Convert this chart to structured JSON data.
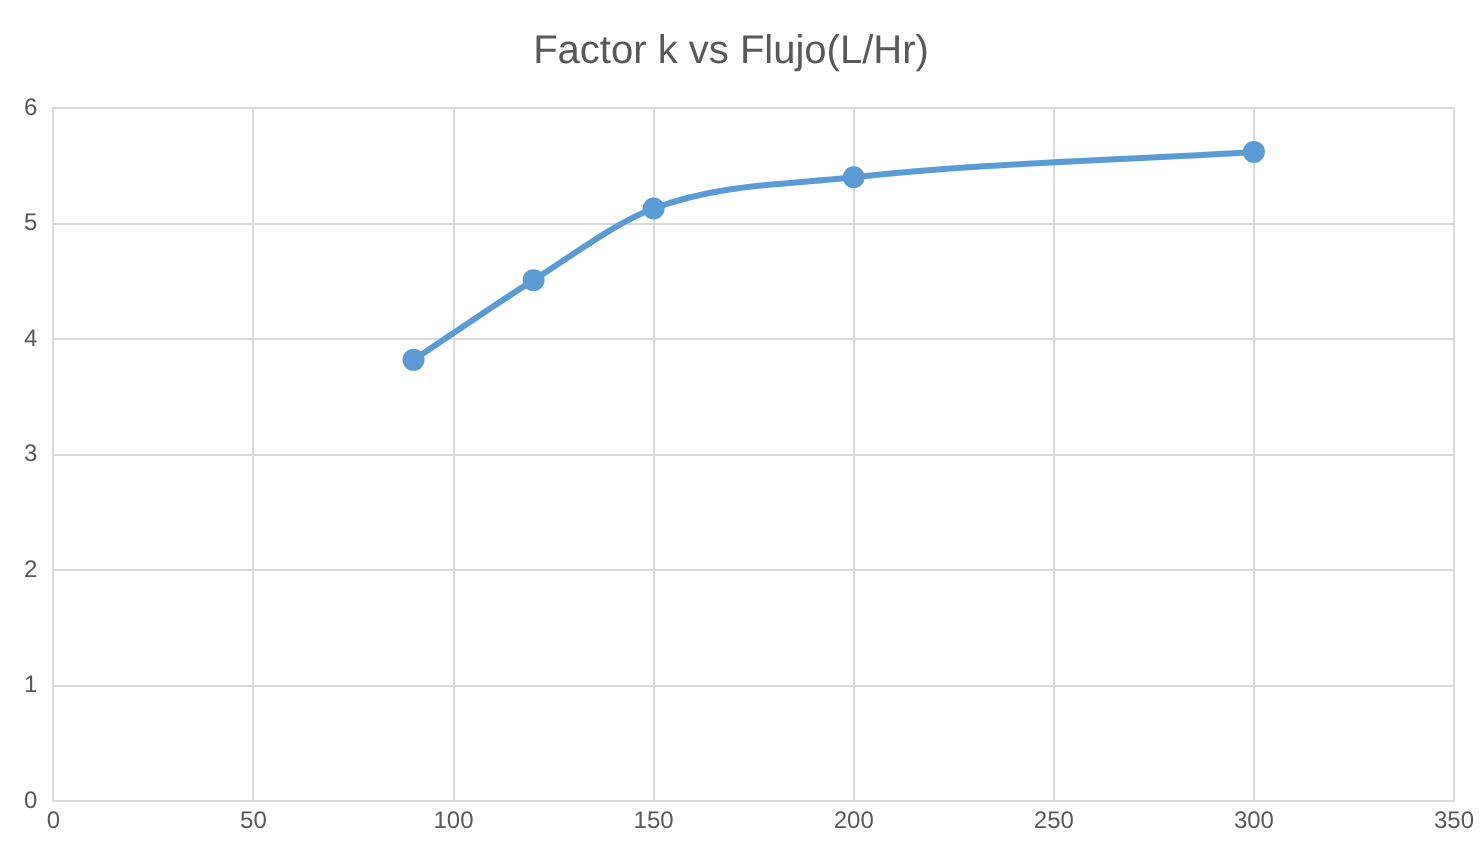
{
  "chart_data": {
    "type": "line",
    "title": "Factor k vs Flujo(L/Hr)",
    "x": [
      90,
      120,
      150,
      200,
      300
    ],
    "series": [
      {
        "color": "#5b9bd5",
        "values": [
          3.82,
          4.51,
          5.13,
          5.4,
          5.62
        ]
      }
    ],
    "xlim": [
      0,
      350
    ],
    "xticks": [
      0,
      50,
      100,
      150,
      200,
      250,
      300,
      350
    ],
    "ylim": [
      0,
      6
    ],
    "yticks": [
      0,
      1,
      2,
      3,
      4,
      5,
      6
    ],
    "grid": true,
    "legend": false,
    "marker": "circle",
    "line_style": "solid"
  }
}
